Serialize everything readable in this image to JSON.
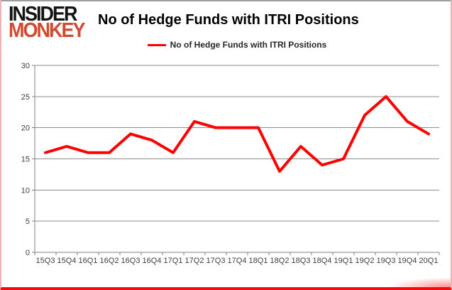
{
  "header": {
    "logo_line1": "INSIDER",
    "logo_line2": "MONKEY",
    "title": "No of Hedge Funds with ITRI Positions"
  },
  "legend": {
    "label": "No of Hedge Funds with ITRI Positions"
  },
  "colors": {
    "line": "#ff0000",
    "grid": "#8c8c8c",
    "axis": "#808080",
    "axis_text": "#3f3f3f",
    "logo_black": "#141414",
    "logo_red": "#d2492f"
  },
  "chart_data": {
    "type": "line",
    "title": "No of Hedge Funds with ITRI Positions",
    "categories": [
      "15Q3",
      "15Q4",
      "16Q1",
      "16Q2",
      "16Q3",
      "16Q4",
      "17Q1",
      "17Q2",
      "17Q3",
      "17Q4",
      "18Q1",
      "18Q2",
      "18Q3",
      "18Q4",
      "19Q1",
      "19Q2",
      "19Q3",
      "19Q4",
      "20Q1"
    ],
    "series": [
      {
        "name": "No of Hedge Funds with ITRI Positions",
        "values": [
          16,
          17,
          16,
          16,
          19,
          18,
          16,
          21,
          20,
          20,
          20,
          13,
          17,
          14,
          15,
          22,
          25,
          21,
          19
        ]
      }
    ],
    "xlabel": "",
    "ylabel": "",
    "ylim": [
      0,
      30
    ],
    "yticks": [
      0,
      5,
      10,
      15,
      20,
      25,
      30
    ],
    "grid": true,
    "legend_position": "top"
  }
}
